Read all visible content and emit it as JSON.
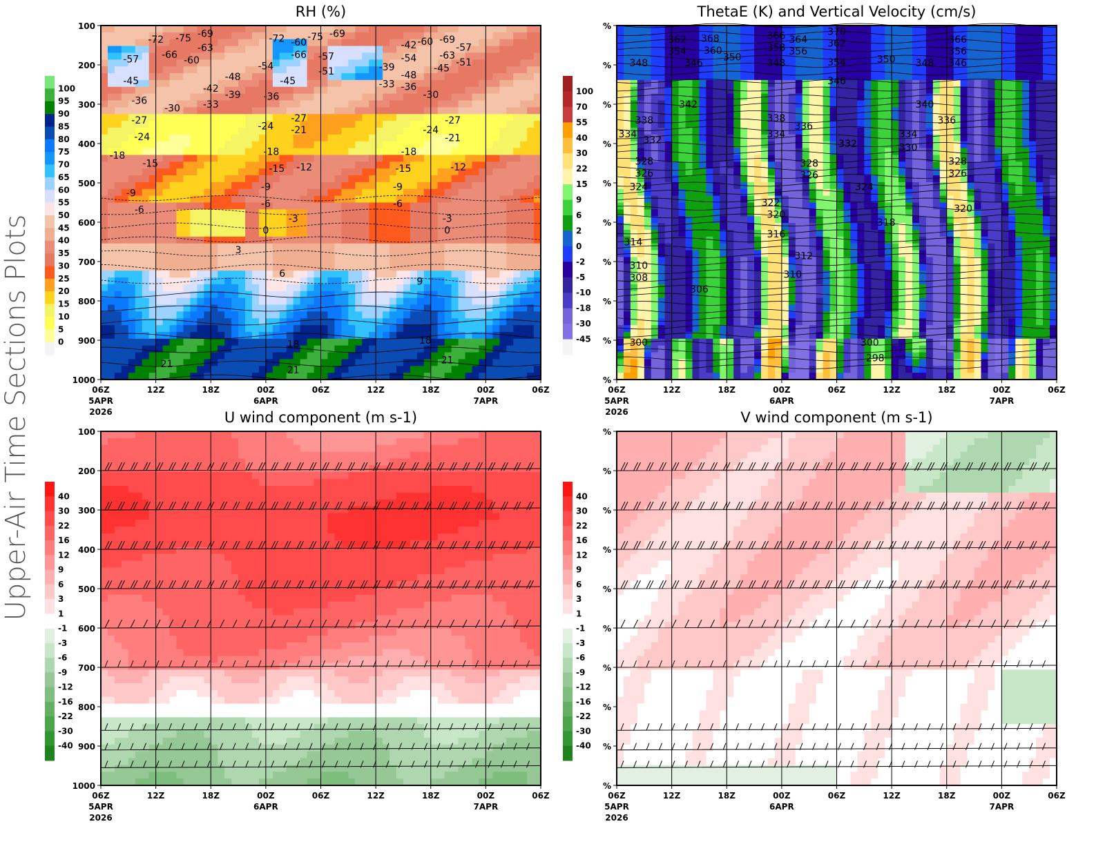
{
  "side_title": "Upper-Air Time Sections Plots",
  "x_ticks": [
    "06Z",
    "12Z",
    "18Z",
    "00Z",
    "06Z",
    "12Z",
    "18Z",
    "00Z",
    "06Z"
  ],
  "x_sub": [
    [
      "5APR",
      "2026"
    ],
    [],
    [],
    [
      "6APR"
    ],
    [],
    [],
    [],
    [
      "7APR"
    ],
    []
  ],
  "chart_data": [
    {
      "type": "heatmap",
      "title": "RH (%)",
      "y_ticks": [
        "100",
        "200",
        "300",
        "400",
        "500",
        "600",
        "700",
        "800",
        "900",
        "1000"
      ],
      "levels": [
        "0",
        "5",
        "10",
        "15",
        "20",
        "25",
        "30",
        "35",
        "40",
        "45",
        "50",
        "55",
        "60",
        "65",
        "70",
        "75",
        "80",
        "85",
        "90",
        "95",
        "100"
      ],
      "colors": [
        "#f4f4f4",
        "#ffff99",
        "#ffff55",
        "#f4f465",
        "#ffd21e",
        "#ffa01e",
        "#ff5a1e",
        "#e67864",
        "#eb8c78",
        "#f0af91",
        "#f5c3aa",
        "#ffe6e6",
        "#d7e1ff",
        "#9bd2ff",
        "#32c3ff",
        "#1496ff",
        "#0a78ff",
        "#0a4bb4",
        "#00238c",
        "#008200",
        "#3caf3c",
        "#78e678"
      ],
      "contour_labels": [
        [
          "-72",
          1,
          0.12
        ],
        [
          "-75",
          1.5,
          0.09
        ],
        [
          "-69",
          1.7,
          0.2
        ],
        [
          "-66",
          1.25,
          0.28
        ],
        [
          "-63",
          1.7,
          0.33
        ],
        [
          "-60",
          1.25,
          0.42
        ],
        [
          "-57",
          0.55,
          0.85
        ],
        [
          "-54",
          3,
          1.03
        ],
        [
          "-48",
          2.4,
          1.3
        ],
        [
          "-45",
          0.55,
          1.4
        ],
        [
          "-42",
          2,
          1.6
        ],
        [
          "-39",
          2.4,
          1.75
        ],
        [
          "-36",
          0.7,
          1.9
        ],
        [
          "-33",
          2,
          2.0
        ],
        [
          "-30",
          1.3,
          2.1
        ],
        [
          "-27",
          0.7,
          2.4
        ],
        [
          "-24",
          0.75,
          2.6
        ],
        [
          "-18",
          0.3,
          3.3
        ],
        [
          "-15",
          0.9,
          3.5
        ],
        [
          "-12",
          3.7,
          3.6
        ],
        [
          "-9",
          0.55,
          4.25
        ],
        [
          "-6",
          0.7,
          4.45
        ],
        [
          "-3",
          3.5,
          4.9
        ],
        [
          "0",
          3,
          5.2
        ],
        [
          "3",
          2.5,
          5.7
        ],
        [
          "6",
          3.3,
          6.3
        ],
        [
          "9",
          5.8,
          6.5
        ],
        [
          "18",
          3.5,
          8.1
        ],
        [
          "21",
          1.2,
          8.6
        ],
        [
          "-72",
          3.2,
          0.1
        ],
        [
          "-75",
          3.9,
          0.05
        ],
        [
          "-69",
          4.1,
          0.2
        ],
        [
          "-66",
          3.6,
          0.28
        ],
        [
          "-60",
          3.6,
          0.42
        ],
        [
          "-57",
          4.1,
          0.55
        ],
        [
          "-51",
          4.1,
          0.7
        ],
        [
          "-45",
          3.4,
          1.4
        ],
        [
          "-36",
          3.1,
          1.8
        ],
        [
          "-27",
          3.6,
          2.35
        ],
        [
          "-24",
          3,
          2.55
        ],
        [
          "-21",
          3.6,
          2.65
        ],
        [
          "-18",
          3.1,
          3.2
        ],
        [
          "-15",
          3.2,
          3.4
        ],
        [
          "-9",
          3,
          4.1
        ],
        [
          "-6",
          3,
          4.3
        ],
        [
          "21",
          3.5,
          8.75
        ],
        [
          "-69",
          6.3,
          0.12
        ],
        [
          "-63",
          6.3,
          0.3
        ],
        [
          "-60",
          5.9,
          0.4
        ],
        [
          "-57",
          6.4,
          0.55
        ],
        [
          "-54",
          5.6,
          0.6
        ],
        [
          "-51",
          6.4,
          0.7
        ],
        [
          "-48",
          5.6,
          0.8
        ],
        [
          "-45",
          6.4,
          0.85
        ],
        [
          "-42",
          5.6,
          0.95
        ],
        [
          "-39",
          5.2,
          1.05
        ],
        [
          "-36",
          5.6,
          1.1
        ],
        [
          "-33",
          5.2,
          1.25
        ],
        [
          "-30",
          5.6,
          1.3
        ],
        [
          "-27",
          6.4,
          2.4
        ],
        [
          "-24",
          6,
          2.65
        ],
        [
          "-21",
          6.4,
          2.85
        ],
        [
          "-18",
          5.6,
          3.2
        ],
        [
          "-15",
          5.5,
          3.4
        ],
        [
          "-12",
          6.5,
          3.6
        ],
        [
          "-9",
          5.4,
          4.1
        ],
        [
          "-6",
          5.4,
          4.3
        ],
        [
          "-3",
          6.3,
          4.9
        ],
        [
          "0",
          6.3,
          5.2
        ],
        [
          "18",
          5.9,
          8.0
        ],
        [
          "21",
          6.3,
          8.5
        ]
      ]
    },
    {
      "type": "heatmap",
      "title": "ThetaE (K) and Vertical Velocity (cm/s)",
      "y_ticks": [
        "%",
        "%",
        "%",
        "%",
        "%",
        "%",
        "%",
        "%",
        "%",
        "%"
      ],
      "levels": [
        "100",
        "70",
        "55",
        "40",
        "30",
        "22",
        "15",
        "9",
        "6",
        "2",
        "0",
        "-2",
        "-5",
        "-10",
        "-18",
        "-30",
        "-45"
      ],
      "colors": [
        "#a01e1e",
        "#b42828",
        "#c83c3c",
        "#ffa000",
        "#ffbe3c",
        "#ffe178",
        "#fff5aa",
        "#82f56e",
        "#3cd23c",
        "#0fa00f",
        "#1464d2",
        "#1e3cff",
        "#2800a0",
        "#3223a0",
        "#4b3cc8",
        "#7364dc",
        "#8270e6",
        "#f4f4f4"
      ],
      "contour_labels": [
        [
          "368",
          1.7,
          0.1
        ],
        [
          "362",
          1.1,
          0.35
        ],
        [
          "360",
          1.75,
          0.4
        ],
        [
          "354",
          1.1,
          0.65
        ],
        [
          "350",
          2.1,
          0.8
        ],
        [
          "348",
          0.4,
          0.95
        ],
        [
          "346",
          1.4,
          0.95
        ],
        [
          "342",
          1.3,
          2
        ],
        [
          "338",
          0.5,
          2.4
        ],
        [
          "334",
          0.2,
          2.75
        ],
        [
          "332",
          0.65,
          2.9
        ],
        [
          "328",
          0.5,
          3.45
        ],
        [
          "326",
          0.5,
          3.75
        ],
        [
          "324",
          0.4,
          4.1
        ],
        [
          "314",
          0.3,
          5.5
        ],
        [
          "310",
          0.4,
          6.1
        ],
        [
          "308",
          0.4,
          6.4
        ],
        [
          "306",
          1.5,
          6.7
        ],
        [
          "300",
          0.4,
          8.05
        ],
        [
          "366",
          2.9,
          0.25
        ],
        [
          "364",
          3.3,
          0.35
        ],
        [
          "358",
          2.9,
          0.55
        ],
        [
          "356",
          3.3,
          0.65
        ],
        [
          "348",
          2.9,
          0.95
        ],
        [
          "338",
          2.9,
          2.35
        ],
        [
          "336",
          3.4,
          2.55
        ],
        [
          "334",
          2.9,
          2.75
        ],
        [
          "328",
          3.5,
          3.5
        ],
        [
          "326",
          3.5,
          3.8
        ],
        [
          "322",
          2.8,
          4.5
        ],
        [
          "320",
          2.9,
          4.8
        ],
        [
          "316",
          2.9,
          5.3
        ],
        [
          "312",
          3.4,
          5.85
        ],
        [
          "310",
          3.2,
          6.1
        ],
        [
          "370",
          4.0,
          0.15
        ],
        [
          "362",
          4.0,
          0.45
        ],
        [
          "354",
          4.0,
          0.7
        ],
        [
          "346",
          4.0,
          0.95
        ],
        [
          "332",
          4.2,
          3.0
        ],
        [
          "324",
          4.5,
          4.1
        ],
        [
          "318",
          4.9,
          5.0
        ],
        [
          "300",
          4.6,
          8.05
        ],
        [
          "298",
          4.7,
          8.45
        ],
        [
          "350",
          4.9,
          0.85
        ],
        [
          "348",
          5.6,
          0.95
        ],
        [
          "340",
          5.6,
          2.0
        ],
        [
          "334",
          5.3,
          2.75
        ],
        [
          "330",
          5.3,
          3.1
        ],
        [
          "366",
          6.2,
          0.35
        ],
        [
          "356",
          6.2,
          0.65
        ],
        [
          "346",
          6.2,
          0.95
        ],
        [
          "336",
          6.0,
          2.4
        ],
        [
          "328",
          6.2,
          3.45
        ],
        [
          "326",
          6.2,
          3.75
        ],
        [
          "320",
          6.3,
          4.65
        ]
      ]
    },
    {
      "type": "heatmap",
      "title": "U wind component (m s-1)",
      "y_ticks": [
        "100",
        "200",
        "300",
        "400",
        "500",
        "600",
        "700",
        "800",
        "900",
        "1000"
      ],
      "levels": [
        "40",
        "30",
        "22",
        "16",
        "12",
        "9",
        "6",
        "3",
        "1",
        "-1",
        "-3",
        "-6",
        "-9",
        "-12",
        "-16",
        "-22",
        "-30",
        "-40"
      ],
      "colors": [
        "#ff1414",
        "#ff3232",
        "#ff4b4b",
        "#ff6464",
        "#ff7d7d",
        "#ff9696",
        "#ffafaf",
        "#ffc8c8",
        "#ffe1e1",
        "#ffffff",
        "#e1f0e1",
        "#c8e6c8",
        "#afd7af",
        "#96c896",
        "#7dbe7d",
        "#64af64",
        "#4ba54b",
        "#329632",
        "#1e821e"
      ]
    },
    {
      "type": "heatmap",
      "title": "V wind component (m s-1)",
      "y_ticks": [
        "%",
        "%",
        "%",
        "%",
        "%",
        "%",
        "%",
        "%",
        "%",
        "%"
      ],
      "levels": [
        "40",
        "30",
        "22",
        "16",
        "12",
        "9",
        "6",
        "3",
        "1",
        "-1",
        "-3",
        "-6",
        "-9",
        "-12",
        "-16",
        "-22",
        "-30",
        "-40"
      ],
      "colors": [
        "#ff1414",
        "#ff3232",
        "#ff4b4b",
        "#ff6464",
        "#ff7d7d",
        "#ff9696",
        "#ffafaf",
        "#ffc8c8",
        "#ffe1e1",
        "#ffffff",
        "#e1f0e1",
        "#c8e6c8",
        "#afd7af",
        "#96c896",
        "#7dbe7d",
        "#64af64",
        "#4ba54b",
        "#329632",
        "#1e821e"
      ]
    }
  ]
}
